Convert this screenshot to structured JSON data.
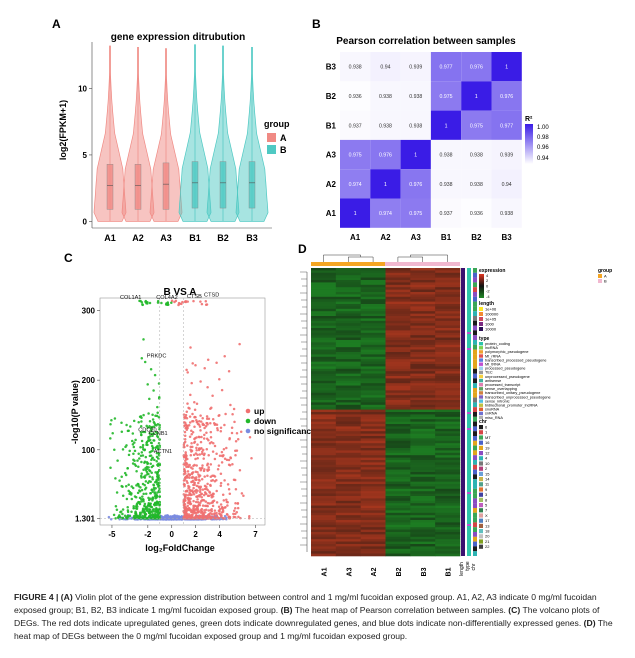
{
  "panels": {
    "A": {
      "letter": "A",
      "title": "gene expression ditrubution",
      "ylabel": "log2(FPKM+1)",
      "legend_title": "group",
      "legend_items": [
        "A",
        "B"
      ],
      "colors": {
        "A": "#f08a84",
        "B": "#4fc9c3"
      }
    },
    "B": {
      "letter": "B",
      "title": "Pearson correlation between samples",
      "legend_title": "R²",
      "legend_ticks": [
        "1.00",
        "0.98",
        "0.96",
        "0.94"
      ],
      "colors": {
        "low": "#ffffff",
        "high": "#3a1ce6"
      }
    },
    "C": {
      "letter": "C",
      "title": "B VS A",
      "xlabel": "log₂FoldChange",
      "ylabel": "-log10(P value)",
      "legend_items": [
        "up",
        "down",
        "no significance"
      ],
      "colors": {
        "up": "#f07070",
        "down": "#22b82a",
        "none": "#7a8be0"
      },
      "gene_labels": [
        "COL1A1",
        "COL4A2",
        "CTSB",
        "CTSD",
        "PRKDC",
        "CDC20",
        "CCNB1",
        "ACTN1"
      ]
    },
    "D": {
      "letter": "D",
      "samples": [
        "A1",
        "A3",
        "A2",
        "B2",
        "B3",
        "B1"
      ],
      "annotation_labels": [
        "length",
        "type",
        "chr"
      ],
      "legend": {
        "expression_title": "expression",
        "expression_ticks": [
          "4",
          "2",
          "0",
          "-2",
          "-4"
        ],
        "length_title": "length",
        "length_items": [
          "1e+06",
          "100000",
          "1e+05",
          "1000",
          "10000"
        ],
        "type_title": "type",
        "type_items": [
          "protein_coding",
          "lncRNA",
          "polymorphic_pseudogene",
          "Mt_rRNA",
          "transcribed_processed_pseudogene",
          "Mt_tRNA",
          "processed_pseudogene",
          "TEC",
          "unprocessed_pseudogene",
          "antisense",
          "processed_transcript",
          "sense_overlapping",
          "transcribed_unitary_pseudogene",
          "transcribed_unprocessed_pseudogene",
          "sense_intronic",
          "bidirectional_promoter_lncRNA",
          "snoRNA",
          "snRNA",
          "misc_RNA"
        ],
        "chr_title": "chr",
        "chr_items": [
          "6",
          "1",
          "MT",
          "16",
          "19",
          "12",
          "4",
          "10",
          "2",
          "15",
          "14",
          "11",
          "9",
          "3",
          "8",
          "5",
          "7",
          "X",
          "17",
          "13",
          "18",
          "20",
          "21",
          "22"
        ],
        "group_title": "group",
        "group_items": [
          "A",
          "B"
        ]
      }
    }
  },
  "chart_data": [
    {
      "type": "violin",
      "title": "gene expression ditrubution",
      "ylabel": "log2(FPKM+1)",
      "categories": [
        "A1",
        "A2",
        "A3",
        "B1",
        "B2",
        "B3"
      ],
      "groups": [
        "A",
        "A",
        "A",
        "B",
        "B",
        "B"
      ],
      "yticks": [
        0,
        5,
        10
      ],
      "ylim": [
        -0.5,
        13.5
      ],
      "max": [
        13.2,
        13.1,
        13.0,
        13.3,
        13.2,
        13.1
      ],
      "q1": [
        0.9,
        0.9,
        0.9,
        1.0,
        1.0,
        1.0
      ],
      "median": [
        2.7,
        2.7,
        2.8,
        2.9,
        2.9,
        2.9
      ],
      "q3": [
        4.3,
        4.3,
        4.4,
        4.5,
        4.5,
        4.5
      ],
      "legend_title": "group",
      "legend": [
        "A",
        "B"
      ],
      "legend_position": "right"
    },
    {
      "type": "heatmap",
      "title": "Pearson correlation between samples",
      "x": [
        "A1",
        "A2",
        "A3",
        "B1",
        "B2",
        "B3"
      ],
      "y": [
        "B3",
        "B2",
        "B1",
        "A3",
        "A2",
        "A1"
      ],
      "values": [
        [
          "0.938",
          "0.94",
          "0.939",
          "0.977",
          "0.976",
          ""
        ],
        [
          "0.936",
          "0.938",
          "0.938",
          "0.975",
          "",
          "0.976"
        ],
        [
          "0.937",
          "0.938",
          "0.938",
          "",
          "0.975",
          "0.977"
        ],
        [
          "0.975",
          "0.976",
          "",
          "0.938",
          "0.938",
          "0.939"
        ],
        [
          "0.974",
          "",
          "0.976",
          "0.938",
          "0.938",
          "0.94"
        ],
        [
          "",
          "0.974",
          "0.975",
          "0.937",
          "0.936",
          "0.938"
        ]
      ],
      "diagonal": "1",
      "legend_title": "R²",
      "legend_range": [
        0.935,
        1.0
      ],
      "legend_ticks": [
        1.0,
        0.98,
        0.96,
        0.94
      ]
    },
    {
      "type": "scatter",
      "title": "B VS A",
      "xlabel": "log₂FoldChange",
      "ylabel": "-log10(P value)",
      "xticks": [
        -5,
        -2,
        0,
        2,
        4,
        7
      ],
      "yticks": [
        1.301,
        100,
        200,
        300
      ],
      "xlim": [
        -6,
        7.8
      ],
      "ylim": [
        -8,
        318
      ],
      "legend": [
        "up",
        "down",
        "no significance"
      ],
      "legend_position": "right",
      "threshold_lines": {
        "x": [
          -1,
          1
        ],
        "y": 1.301
      },
      "points_description": "up: log2FC>1, down: log2FC<-1, no significance: |log2FC|<=1",
      "labeled_genes": [
        {
          "label": "COL1A1",
          "x": -2.2,
          "y": 312
        },
        {
          "label": "COL4A2",
          "x": -0.9,
          "y": 312
        },
        {
          "label": "CTSB",
          "x": 1.1,
          "y": 312
        },
        {
          "label": "CTSD",
          "x": 2.2,
          "y": 313
        },
        {
          "label": "PRKDC",
          "x": -1.1,
          "y": 228
        },
        {
          "label": "CDC20",
          "x": -1.7,
          "y": 122
        },
        {
          "label": "CCNB1",
          "x": -1.3,
          "y": 117
        },
        {
          "label": "ACTN1",
          "x": -0.9,
          "y": 91
        }
      ]
    },
    {
      "type": "heatmap",
      "title": "",
      "x": [
        "A1",
        "A3",
        "A2",
        "B2",
        "B3",
        "B1"
      ],
      "legend_title": "expression",
      "legend_ticks": [
        4,
        2,
        0,
        -2,
        -4
      ],
      "description": "DEG expression: upper rows low in A, high in B; lower rows high in A, low in B"
    }
  ]
}
